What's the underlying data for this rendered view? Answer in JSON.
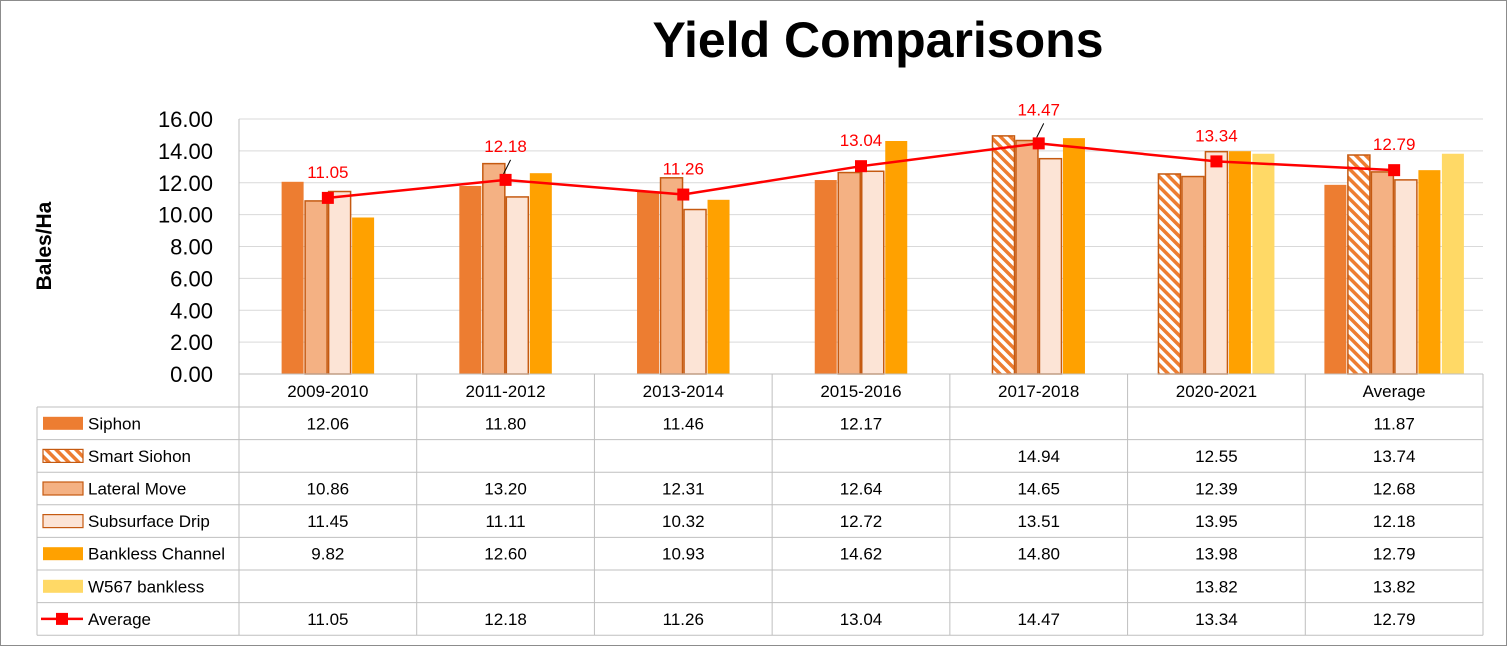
{
  "chart_data": {
    "type": "bar",
    "title": "Yield Comparisons",
    "ylabel": "Bales/Ha",
    "xlabel": "",
    "ylim": [
      0,
      16
    ],
    "yticks": [
      "0.00",
      "2.00",
      "4.00",
      "6.00",
      "8.00",
      "10.00",
      "12.00",
      "14.00",
      "16.00"
    ],
    "categories": [
      "2009-2010",
      "2011-2012",
      "2013-2014",
      "2015-2016",
      "2017-2018",
      "2020-2021",
      "Average"
    ],
    "grid": true,
    "legend": "data-table",
    "series": [
      {
        "name": "Siphon",
        "type": "bar",
        "color": "#ed7d31",
        "pattern": "solid",
        "values": [
          12.06,
          11.8,
          11.46,
          12.17,
          null,
          null,
          11.87
        ],
        "labels": [
          "12.06",
          "11.80",
          "11.46",
          "12.17",
          "",
          "",
          "11.87"
        ]
      },
      {
        "name": "Smart Siohon",
        "type": "bar",
        "color": "#ed7d31",
        "pattern": "hatch",
        "values": [
          null,
          null,
          null,
          null,
          14.94,
          12.55,
          13.74
        ],
        "labels": [
          "",
          "",
          "",
          "",
          "14.94",
          "12.55",
          "13.74"
        ]
      },
      {
        "name": "Lateral Move",
        "type": "bar",
        "color": "#f4b183",
        "pattern": "solid",
        "values": [
          10.86,
          13.2,
          12.31,
          12.64,
          14.65,
          12.39,
          12.68
        ],
        "labels": [
          "10.86",
          "13.20",
          "12.31",
          "12.64",
          "14.65",
          "12.39",
          "12.68"
        ]
      },
      {
        "name": "Subsurface Drip",
        "type": "bar",
        "color": "#fce4d6",
        "pattern": "solid",
        "values": [
          11.45,
          11.11,
          10.32,
          12.72,
          13.51,
          13.95,
          12.18
        ],
        "labels": [
          "11.45",
          "11.11",
          "10.32",
          "12.72",
          "13.51",
          "13.95",
          "12.18"
        ]
      },
      {
        "name": "Bankless Channel",
        "type": "bar",
        "color": "#ffa100",
        "pattern": "solid",
        "values": [
          9.82,
          12.6,
          10.93,
          14.62,
          14.8,
          13.98,
          12.79
        ],
        "labels": [
          "9.82",
          "12.60",
          "10.93",
          "14.62",
          "14.80",
          "13.98",
          "12.79"
        ]
      },
      {
        "name": "W567 bankless",
        "type": "bar",
        "color": "#ffd966",
        "pattern": "solid",
        "values": [
          null,
          null,
          null,
          null,
          null,
          13.82,
          13.82
        ],
        "labels": [
          "",
          "",
          "",
          "",
          "",
          "13.82",
          "13.82"
        ]
      },
      {
        "name": "Average",
        "type": "line",
        "color": "#ff0000",
        "values": [
          11.05,
          12.18,
          11.26,
          13.04,
          14.47,
          13.34,
          12.79
        ],
        "labels": [
          "11.05",
          "12.18",
          "11.26",
          "13.04",
          "14.47",
          "13.34",
          "12.79"
        ]
      }
    ]
  }
}
